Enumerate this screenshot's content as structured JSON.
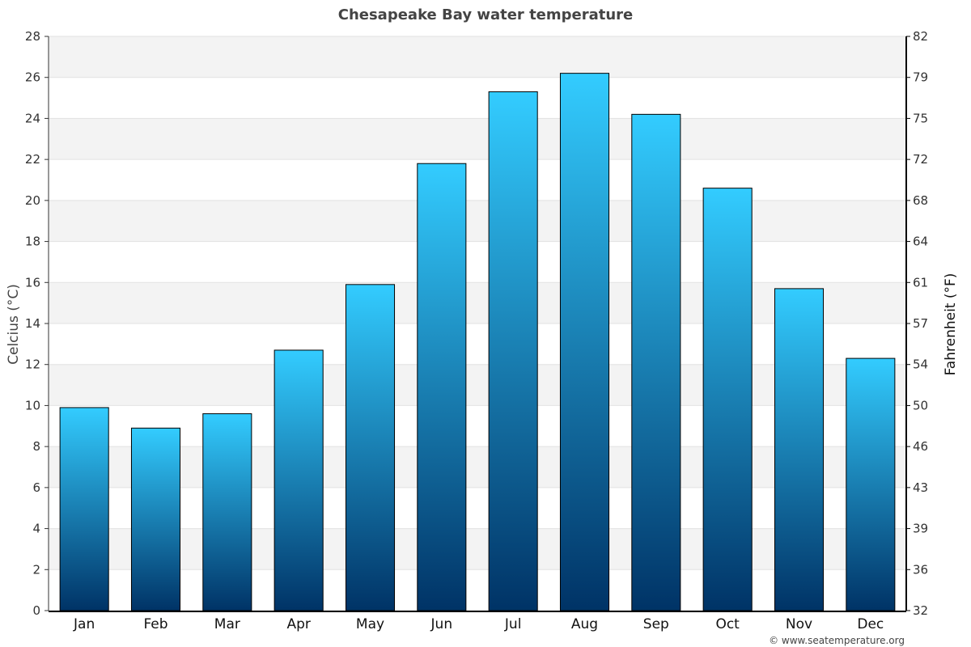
{
  "chart_data": {
    "type": "bar",
    "title": "Chesapeake Bay water temperature",
    "categories": [
      "Jan",
      "Feb",
      "Mar",
      "Apr",
      "May",
      "Jun",
      "Jul",
      "Aug",
      "Sep",
      "Oct",
      "Nov",
      "Dec"
    ],
    "series": [
      {
        "values": [
          9.9,
          8.9,
          9.6,
          12.7,
          15.9,
          21.8,
          25.3,
          26.2,
          24.2,
          20.6,
          15.7,
          12.3
        ]
      }
    ],
    "ylabel": "Celcius (°C)",
    "y2label": "Fahrenheit (°F)",
    "ylim": [
      0,
      28
    ],
    "yticks": [
      0,
      2,
      4,
      6,
      8,
      10,
      12,
      14,
      16,
      18,
      20,
      22,
      24,
      26,
      28
    ],
    "y2ticks": [
      "32",
      "36",
      "39",
      "43",
      "46",
      "50",
      "54",
      "57",
      "61",
      "64",
      "68",
      "72",
      "75",
      "79",
      "82"
    ],
    "grid": true,
    "legend": "none",
    "bar_color_top": "#33ccff",
    "bar_color_bottom": "#003366",
    "band_color": "#f3f3f3"
  },
  "credit": "© www.seatemperature.org"
}
